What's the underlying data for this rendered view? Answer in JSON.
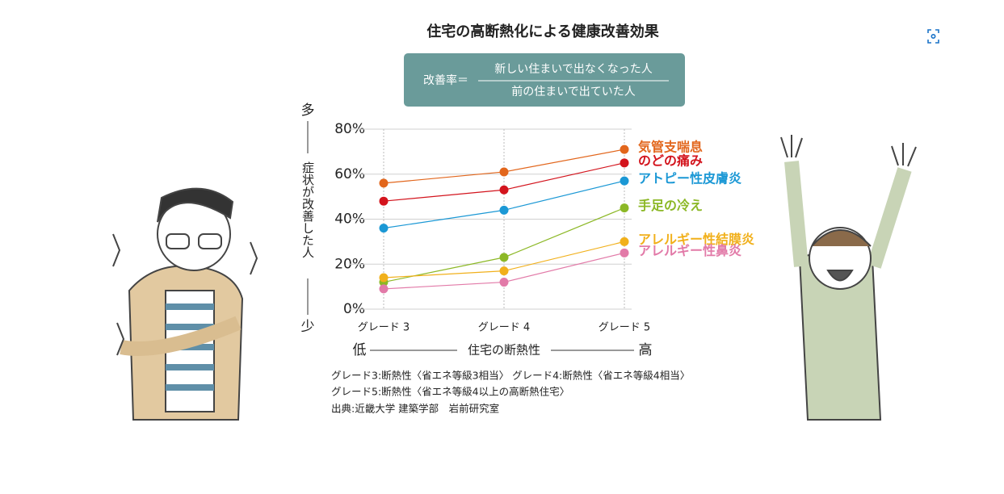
{
  "chart_data": {
    "type": "line",
    "title": "住宅の高断熱化による健康改善効果",
    "formula": {
      "left": "改善率＝",
      "numerator": "新しい住まいで出なくなった人",
      "denominator": "前の住まいで出ていた人"
    },
    "y_axis": {
      "top": "多",
      "label": "症状が改善した人",
      "bottom": "少"
    },
    "x_axis": {
      "left": "低",
      "label": "住宅の断熱性",
      "right": "高"
    },
    "categories": [
      "グレード 3",
      "グレード 4",
      "グレード 5"
    ],
    "series": [
      {
        "name": "気管支喘息",
        "color": "#e2661c",
        "values": [
          56,
          61,
          71
        ]
      },
      {
        "name": "のどの痛み",
        "color": "#d3141d",
        "values": [
          48,
          53,
          65
        ]
      },
      {
        "name": "アトピー性皮膚炎",
        "color": "#1b98d5",
        "values": [
          36,
          44,
          57
        ]
      },
      {
        "name": "手足の冷え",
        "color": "#8cb826",
        "values": [
          12,
          23,
          45
        ]
      },
      {
        "name": "アレルギー性結膜炎",
        "color": "#f1b01b",
        "values": [
          14,
          17,
          30
        ]
      },
      {
        "name": "アレルギー性鼻炎",
        "color": "#e27aa8",
        "values": [
          9,
          12,
          25
        ]
      }
    ],
    "ylim": [
      0,
      80
    ],
    "yticks": [
      {
        "value": 0,
        "label": "0%"
      },
      {
        "value": 20,
        "label": "20%"
      },
      {
        "value": 40,
        "label": "40%"
      },
      {
        "value": 60,
        "label": "60%"
      },
      {
        "value": 80,
        "label": "80%"
      }
    ],
    "grid": true,
    "notes": [
      "グレード3:断熱性〈省エネ等級3相当〉 グレード4:断熱性〈省エネ等級4相当〉",
      "グレード5:断熱性〈省エネ等級4以上の高断熱住宅〉",
      "出典:近畿大学 建築学部　岩前研究室"
    ]
  }
}
